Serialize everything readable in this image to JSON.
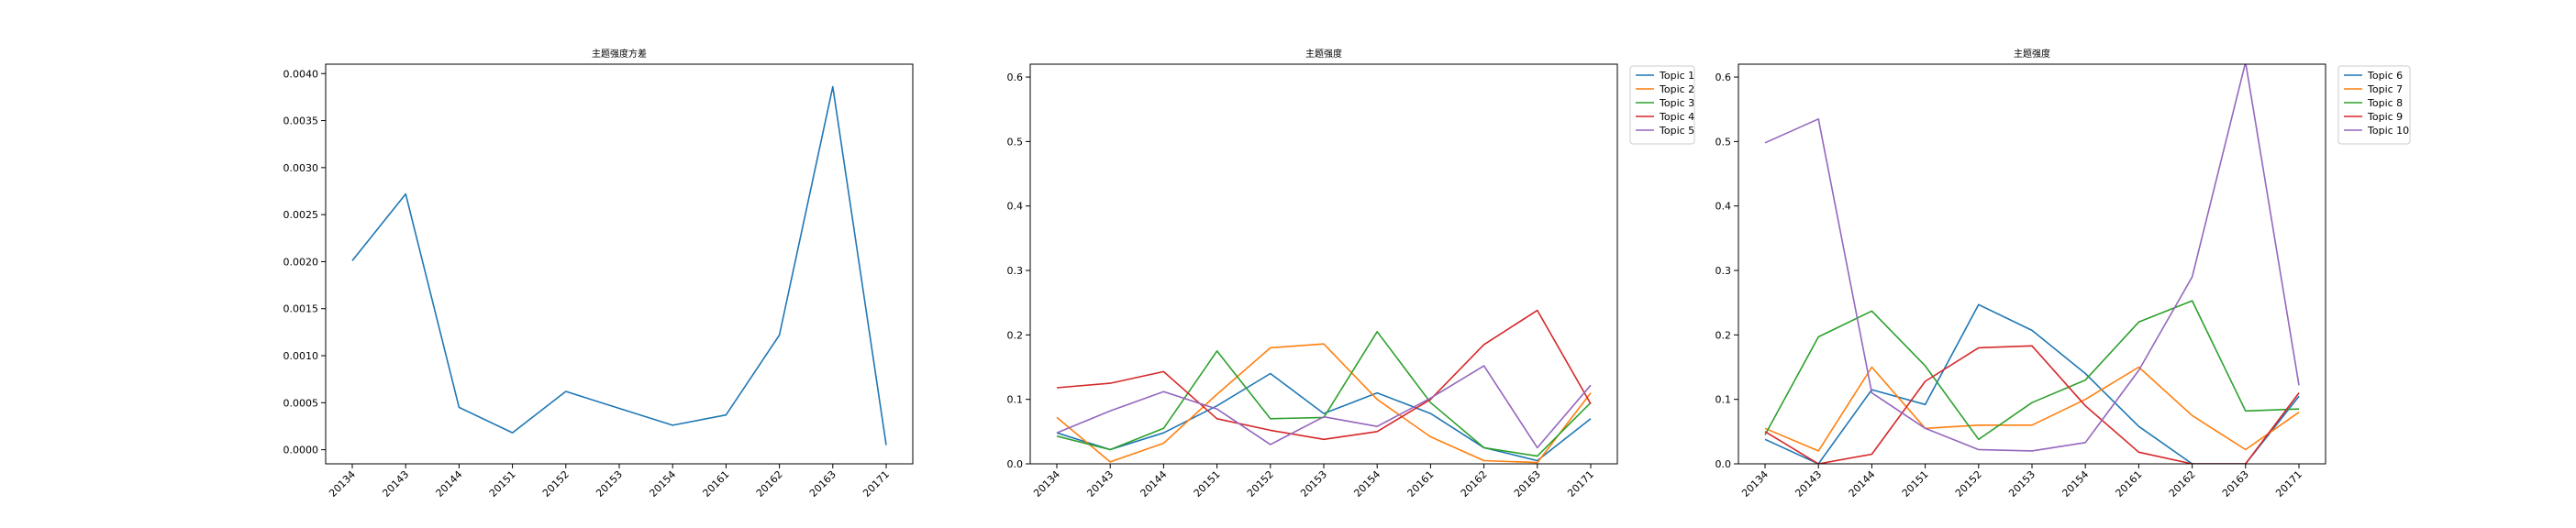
{
  "chart_data": [
    {
      "type": "line",
      "title": "主题强度方差",
      "xlabel": "",
      "ylabel": "",
      "categories": [
        "20134",
        "20143",
        "20144",
        "20151",
        "20152",
        "20153",
        "20154",
        "20161",
        "20162",
        "20163",
        "20171"
      ],
      "ylim": [
        -0.00015,
        0.0041
      ],
      "yticks": [
        0.0,
        0.0005,
        0.001,
        0.0015,
        0.002,
        0.0025,
        0.003,
        0.0035,
        0.004
      ],
      "yticklabels": [
        "0.0000",
        "0.0005",
        "0.0010",
        "0.0015",
        "0.0020",
        "0.0025",
        "0.0030",
        "0.0035",
        "0.0040"
      ],
      "grid": false,
      "legend": null,
      "series": [
        {
          "values": [
            0.00201,
            0.00272,
            0.00045,
            0.00018,
            0.00062,
            0.00044,
            0.00026,
            0.00037,
            0.00122,
            0.00386,
            5e-05
          ],
          "color": "#1f77b4"
        }
      ]
    },
    {
      "type": "line",
      "title": "主题强度",
      "xlabel": "",
      "ylabel": "",
      "categories": [
        "20134",
        "20143",
        "20144",
        "20151",
        "20152",
        "20153",
        "20154",
        "20161",
        "20162",
        "20163",
        "20171"
      ],
      "ylim": [
        0.0,
        0.62
      ],
      "yticks": [
        0.0,
        0.1,
        0.2,
        0.3,
        0.4,
        0.5,
        0.6
      ],
      "yticklabels": [
        "0.0",
        "0.1",
        "0.2",
        "0.3",
        "0.4",
        "0.5",
        "0.6"
      ],
      "grid": false,
      "legend": "outside-top-right",
      "series": [
        {
          "name": "Topic 1",
          "color": "#1f77b4",
          "values": [
            0.048,
            0.022,
            0.048,
            0.09,
            0.14,
            0.078,
            0.11,
            0.078,
            0.025,
            0.005,
            0.07
          ]
        },
        {
          "name": "Topic 2",
          "color": "#ff7f0e",
          "values": [
            0.072,
            0.003,
            0.032,
            0.108,
            0.18,
            0.186,
            0.1,
            0.042,
            0.005,
            0.002,
            0.11
          ]
        },
        {
          "name": "Topic 3",
          "color": "#2ca02c",
          "values": [
            0.043,
            0.022,
            0.055,
            0.175,
            0.07,
            0.072,
            0.205,
            0.095,
            0.025,
            0.012,
            0.095
          ]
        },
        {
          "name": "Topic 4",
          "color": "#d62728",
          "values": [
            0.118,
            0.125,
            0.143,
            0.07,
            0.052,
            0.038,
            0.05,
            0.1,
            0.185,
            0.238,
            0.093
          ]
        },
        {
          "name": "Topic 5",
          "color": "#9467bd",
          "values": [
            0.048,
            0.082,
            0.112,
            0.085,
            0.03,
            0.073,
            0.058,
            0.102,
            0.152,
            0.025,
            0.122
          ]
        }
      ]
    },
    {
      "type": "line",
      "title": "主题强度",
      "xlabel": "",
      "ylabel": "",
      "categories": [
        "20134",
        "20143",
        "20144",
        "20151",
        "20152",
        "20153",
        "20154",
        "20161",
        "20162",
        "20163",
        "20171"
      ],
      "ylim": [
        0.0,
        0.62
      ],
      "yticks": [
        0.0,
        0.1,
        0.2,
        0.3,
        0.4,
        0.5,
        0.6
      ],
      "yticklabels": [
        "0.0",
        "0.1",
        "0.2",
        "0.3",
        "0.4",
        "0.5",
        "0.6"
      ],
      "grid": false,
      "legend": "outside-top-right",
      "series": [
        {
          "name": "Topic 6",
          "color": "#1f77b4",
          "values": [
            0.038,
            0.0,
            0.115,
            0.092,
            0.247,
            0.207,
            0.14,
            0.058,
            0.0,
            0.0,
            0.105
          ]
        },
        {
          "name": "Topic 7",
          "color": "#ff7f0e",
          "values": [
            0.055,
            0.02,
            0.15,
            0.055,
            0.06,
            0.06,
            0.1,
            0.15,
            0.075,
            0.022,
            0.08
          ]
        },
        {
          "name": "Topic 8",
          "color": "#2ca02c",
          "values": [
            0.045,
            0.197,
            0.237,
            0.152,
            0.038,
            0.095,
            0.13,
            0.22,
            0.253,
            0.082,
            0.085
          ]
        },
        {
          "name": "Topic 9",
          "color": "#d62728",
          "values": [
            0.05,
            0.0,
            0.015,
            0.128,
            0.18,
            0.183,
            0.09,
            0.018,
            0.0,
            0.0,
            0.11
          ]
        },
        {
          "name": "Topic 10",
          "color": "#9467bd",
          "values": [
            0.498,
            0.535,
            0.11,
            0.055,
            0.022,
            0.02,
            0.033,
            0.145,
            0.29,
            0.623,
            0.122
          ]
        }
      ]
    }
  ]
}
